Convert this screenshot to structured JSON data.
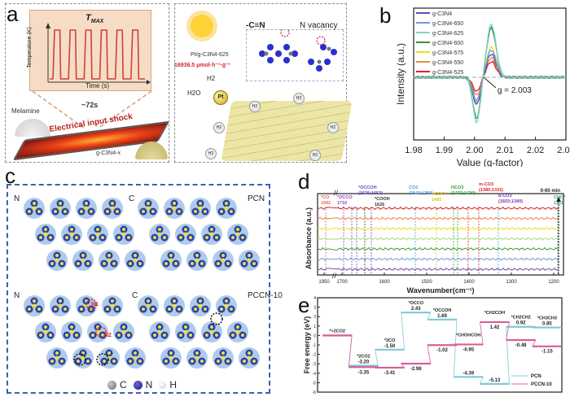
{
  "figure": {
    "panel_labels": [
      "a",
      "b",
      "c",
      "d",
      "e"
    ]
  },
  "panel_a": {
    "inset_title": "T",
    "inset_title_sub": "MAX",
    "inset_ylabel": "Temperature (K)",
    "inset_xlabel": "Time (s)",
    "pulse_count": 6,
    "duration_label": "~72s",
    "melamine_label": "Melamine",
    "shock_label": "Electrical input shock",
    "product_label": "g-C3N4-x",
    "catalyst_label": "Pt/g-C3N4-625",
    "rate_label": "16936.5 µmol·h⁻¹·g⁻¹",
    "cyano_label": "-C≡N",
    "vacancy_label": "N vacancy",
    "h2_label": "H2",
    "h2o_label": "H2O",
    "pt_label": "Pt",
    "bubble_label": "H2"
  },
  "chart_data": [
    {
      "panel": "b",
      "type": "line",
      "title": "",
      "xlabel": "Value (g-factor)",
      "ylabel": "Intensity (a.u.)",
      "xlim": [
        1.98,
        2.03
      ],
      "x_ticks": [
        "1.98",
        "1.99",
        "2.00",
        "2.01",
        "2.02",
        "2.03"
      ],
      "annotation": "g = 2.003",
      "legend_position": "top-left",
      "series": [
        {
          "name": "g-C3N4",
          "color": "#5a4fbf",
          "trough": -0.42,
          "peak": 0.36
        },
        {
          "name": "g-C3N4-650",
          "color": "#6f9be0",
          "trough": -0.36,
          "peak": 0.42
        },
        {
          "name": "g-C3N4-625",
          "color": "#7fd8c8",
          "trough": -0.7,
          "peak": 0.82
        },
        {
          "name": "g-C3N4-600",
          "color": "#3f8f2f",
          "trough": -0.64,
          "peak": 0.76
        },
        {
          "name": "g-C3N4-575",
          "color": "#f0e020",
          "trough": -0.4,
          "peak": 0.46
        },
        {
          "name": "g-C3N4-550",
          "color": "#f08a3a",
          "trough": -0.28,
          "peak": 0.3
        },
        {
          "name": "g-C3N4-525",
          "color": "#d8262b",
          "trough": -0.22,
          "peak": 0.24
        }
      ]
    },
    {
      "panel": "d",
      "type": "line",
      "title": "",
      "xlabel": "Wavenumber(cm⁻¹)",
      "ylabel": "Absorbance (a.u.)",
      "x_ticks": [
        "1950",
        "1700",
        "1600",
        "1500",
        "1400",
        "1300",
        "1200"
      ],
      "time_label": "0-60 min",
      "series_colors": [
        "#d8262b",
        "#f08a3a",
        "#f0e020",
        "#a8d88a",
        "#3f9f2f",
        "#6f9be0",
        "#7a4fa8"
      ],
      "annotations": [
        {
          "label": "*CO",
          "value": "1941",
          "color": "#e06060"
        },
        {
          "label": "*OCCO",
          "value": "1710",
          "color": "#9a3fbf"
        },
        {
          "label": "*OCCOH",
          "value": "(1676;1653)",
          "color": "#5a4fbf"
        },
        {
          "label": "*COOH",
          "value": "1626",
          "color": "#333333"
        },
        {
          "label": "CO2",
          "value": "(1547;1259)",
          "color": "#4aa0e0"
        },
        {
          "label": "HCOO*",
          "value": "1485",
          "color": "#d8c820"
        },
        {
          "label": "HCO3",
          "value": "(1432;1420)",
          "color": "#2f9f2f"
        },
        {
          "label": "m-CO3",
          "value": "(1380;1332)",
          "color": "#d8262b"
        },
        {
          "label": "b-CO3",
          "value": "(1603;1340)",
          "color": "#7a2fb5"
        },
        {
          "label": "CHO*",
          "value": "1161",
          "color": "#2fa070"
        }
      ]
    },
    {
      "panel": "e",
      "type": "line",
      "title": "",
      "xlabel": "",
      "ylabel": "Free energy (eV)",
      "ylim": [
        -6,
        4
      ],
      "y_ticks": [
        "4",
        "3",
        "2",
        "1",
        "0",
        "-1",
        "-2",
        "-3",
        "-4",
        "-5",
        "-6"
      ],
      "legend_position": "bottom-right",
      "steps": [
        "*+2CO2",
        "*2CO2",
        "*2CO",
        "*OCCO",
        "*OCCOH",
        "*CHOHCOH",
        "*CH2COH",
        "*CH2CH2",
        "*CH3CH3"
      ],
      "series": [
        {
          "name": "PCN",
          "color": "#7fc8d8",
          "values": [
            0,
            -3.2,
            -1.5,
            2.43,
            1.69,
            -4.39,
            -5.13,
            0.92,
            0.85
          ]
        },
        {
          "name": "PCCN-10",
          "color": "#d8609a",
          "values": [
            0,
            -3.35,
            -3.41,
            -2.98,
            -1.02,
            -0.95,
            1.42,
            -0.48,
            -1.15
          ]
        }
      ],
      "step_labels": [
        {
          "text": "*+2CO2",
          "step": 0
        },
        {
          "text": "*2CO2",
          "step": 1
        },
        {
          "text": "*2CO",
          "step": 2
        },
        {
          "text": "*OCCO",
          "step": 3
        },
        {
          "text": "*OCCOH",
          "step": 4
        },
        {
          "text": "*CHOHCOH",
          "step": 5
        },
        {
          "text": "*CH2COH",
          "step": 6
        },
        {
          "text": "*CH2CH2",
          "step": 7
        },
        {
          "text": "*CH3CH3",
          "step": 8
        }
      ]
    }
  ],
  "panel_c": {
    "top_left_label": "N",
    "top_mid_label": "C",
    "top_right_label": "PCN",
    "bottom_left_label": "N",
    "bottom_mid_label": "C",
    "bottom_right_label": "PCCN-10",
    "site1_label": "N1",
    "site2_label": "N2",
    "legend": [
      {
        "symbol": "C",
        "color": "#8a8a8a"
      },
      {
        "symbol": "N",
        "color": "#2a2fa0"
      },
      {
        "symbol": "H",
        "color": "#e8e8e8"
      }
    ]
  }
}
